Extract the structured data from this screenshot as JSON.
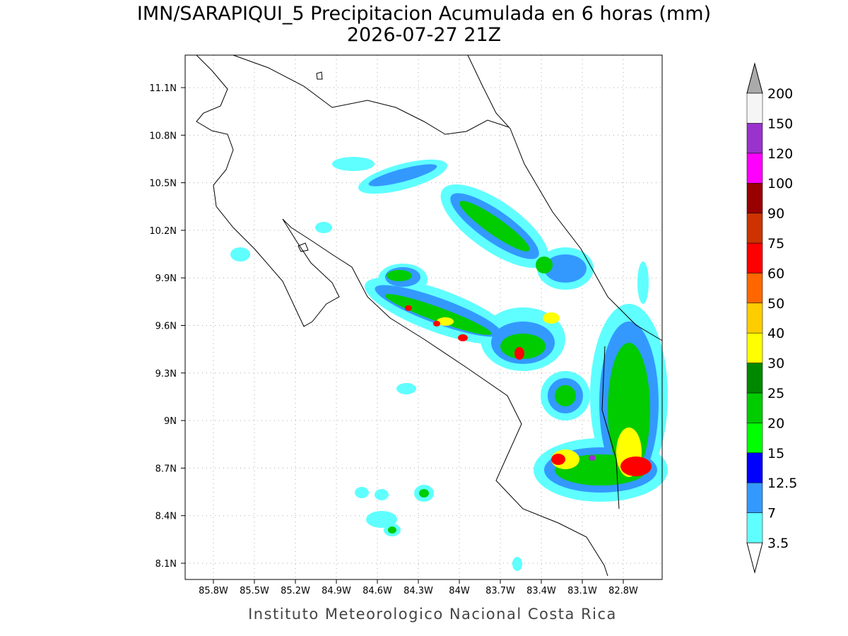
{
  "title": "IMN/SARAPIQUI_5 Precipitacion Acumulada en 6 horas (mm)",
  "subtitle": "2026-07-27 21Z",
  "map": {
    "lon_labels": [
      "85.8W",
      "85.5W",
      "85.2W",
      "84.9W",
      "84.6W",
      "84.3W",
      "84W",
      "83.7W",
      "83.4W",
      "83.1W",
      "82.8W"
    ],
    "lat_labels": [
      "11.1N",
      "10.8N",
      "10.5N",
      "10.2N",
      "9.9N",
      "9.6N",
      "9.3N",
      "9N",
      "8.7N",
      "8.4N",
      "8.1N"
    ]
  },
  "colorbar": {
    "levels": [
      "3.5",
      "7",
      "12.5",
      "15",
      "20",
      "25",
      "30",
      "40",
      "50",
      "60",
      "75",
      "90",
      "100",
      "120",
      "150",
      "200"
    ],
    "colors": [
      "#5fffff",
      "#3399ff",
      "#0000ff",
      "#00ff00",
      "#00cc00",
      "#008800",
      "#ffff00",
      "#ffcc00",
      "#ff6600",
      "#ff0000",
      "#cc3300",
      "#990000",
      "#ff00ff",
      "#9933cc",
      "#f5f5f5"
    ],
    "under_color": "#ffffff",
    "over_color": "#aaaaaa"
  },
  "footer": "Instituto Meteorologico Nacional Costa Rica"
}
